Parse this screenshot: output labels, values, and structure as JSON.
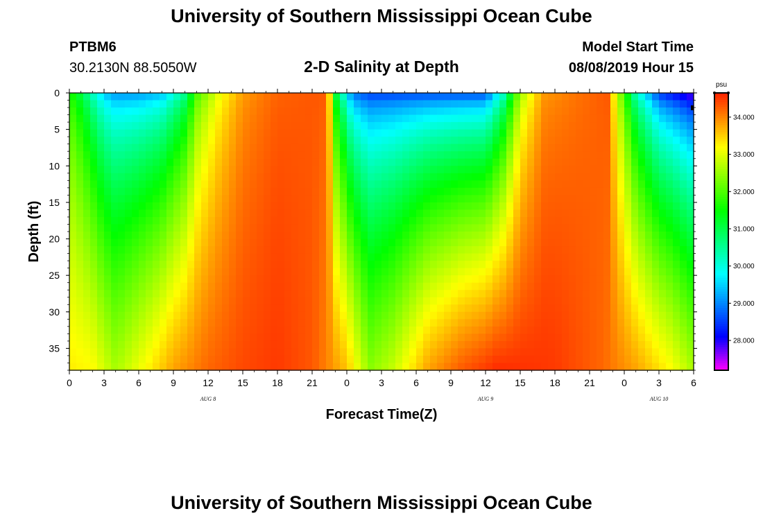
{
  "page": {
    "title_top": "University of Southern Mississippi Ocean Cube",
    "title_bottom": "University of Southern Mississippi Ocean Cube",
    "station_id": "PTBM6",
    "station_coords": "30.2130N 88.5050W",
    "plot_title": "2-D Salinity at Depth",
    "model_start_label": "Model Start Time",
    "model_start_value": "08/08/2019 Hour 15"
  },
  "chart_data": {
    "type": "heatmap",
    "title": "2-D Salinity at Depth",
    "xlabel": "Forecast Time(Z)",
    "ylabel": "Depth (ft)",
    "x_range_hours": [
      0,
      54
    ],
    "ylim": [
      0,
      38
    ],
    "y_ticks": [
      0,
      5,
      10,
      15,
      20,
      25,
      30,
      35
    ],
    "x_tick_labels": [
      "0",
      "3",
      "6",
      "9",
      "12",
      "15",
      "18",
      "21",
      "0",
      "3",
      "6",
      "9",
      "12",
      "15",
      "18",
      "21",
      "0",
      "3",
      "6"
    ],
    "day_labels": [
      {
        "label": "AUG 8",
        "hour": 12
      },
      {
        "label": "AUG 9",
        "hour": 36
      },
      {
        "label": "AUG 10",
        "hour": 51
      }
    ],
    "colorbar": {
      "unit": "psu",
      "min": 27.2,
      "max": 34.65,
      "ticks": [
        "34.000",
        "33.000",
        "32.000",
        "31.000",
        "30.000",
        "29.000",
        "28.000"
      ]
    },
    "surface_profile": [
      {
        "hour": 0,
        "value": 31.6
      },
      {
        "hour": 1,
        "value": 30.9
      },
      {
        "hour": 2,
        "value": 30.0
      },
      {
        "hour": 3,
        "value": 29.2
      },
      {
        "hour": 4,
        "value": 28.9
      },
      {
        "hour": 6,
        "value": 28.9
      },
      {
        "hour": 8,
        "value": 29.1
      },
      {
        "hour": 10,
        "value": 30.3
      },
      {
        "hour": 11,
        "value": 31.8
      },
      {
        "hour": 13,
        "value": 33.0
      },
      {
        "hour": 15,
        "value": 33.8
      },
      {
        "hour": 18,
        "value": 34.2
      },
      {
        "hour": 21,
        "value": 34.3
      },
      {
        "hour": 22.3,
        "value": 34.3
      },
      {
        "hour": 23,
        "value": 31.0
      },
      {
        "hour": 24.5,
        "value": 28.6
      },
      {
        "hour": 26,
        "value": 28.3
      },
      {
        "hour": 30,
        "value": 28.3
      },
      {
        "hour": 36,
        "value": 28.3
      },
      {
        "hour": 37.5,
        "value": 29.8
      },
      {
        "hour": 39,
        "value": 32.4
      },
      {
        "hour": 41,
        "value": 33.8
      },
      {
        "hour": 44,
        "value": 34.1
      },
      {
        "hour": 46.5,
        "value": 34.3
      },
      {
        "hour": 47.5,
        "value": 32.5
      },
      {
        "hour": 49,
        "value": 30.0
      },
      {
        "hour": 51,
        "value": 28.2
      },
      {
        "hour": 54,
        "value": 27.4
      }
    ],
    "bottom_profile": [
      {
        "hour": 0,
        "value": 33.3
      },
      {
        "hour": 2,
        "value": 33.2
      },
      {
        "hour": 4,
        "value": 32.6
      },
      {
        "hour": 7,
        "value": 33.3
      },
      {
        "hour": 9,
        "value": 33.8
      },
      {
        "hour": 12,
        "value": 34.2
      },
      {
        "hour": 15,
        "value": 34.4
      },
      {
        "hour": 18,
        "value": 34.5
      },
      {
        "hour": 21,
        "value": 34.3
      },
      {
        "hour": 24,
        "value": 33.6
      },
      {
        "hour": 26,
        "value": 32.4
      },
      {
        "hour": 28,
        "value": 32.8
      },
      {
        "hour": 31,
        "value": 33.8
      },
      {
        "hour": 34,
        "value": 34.3
      },
      {
        "hour": 37,
        "value": 34.6
      },
      {
        "hour": 42,
        "value": 34.5
      },
      {
        "hour": 46,
        "value": 34.2
      },
      {
        "hour": 49,
        "value": 33.8
      },
      {
        "hour": 52,
        "value": 33.2
      },
      {
        "hour": 54,
        "value": 32.6
      }
    ]
  }
}
